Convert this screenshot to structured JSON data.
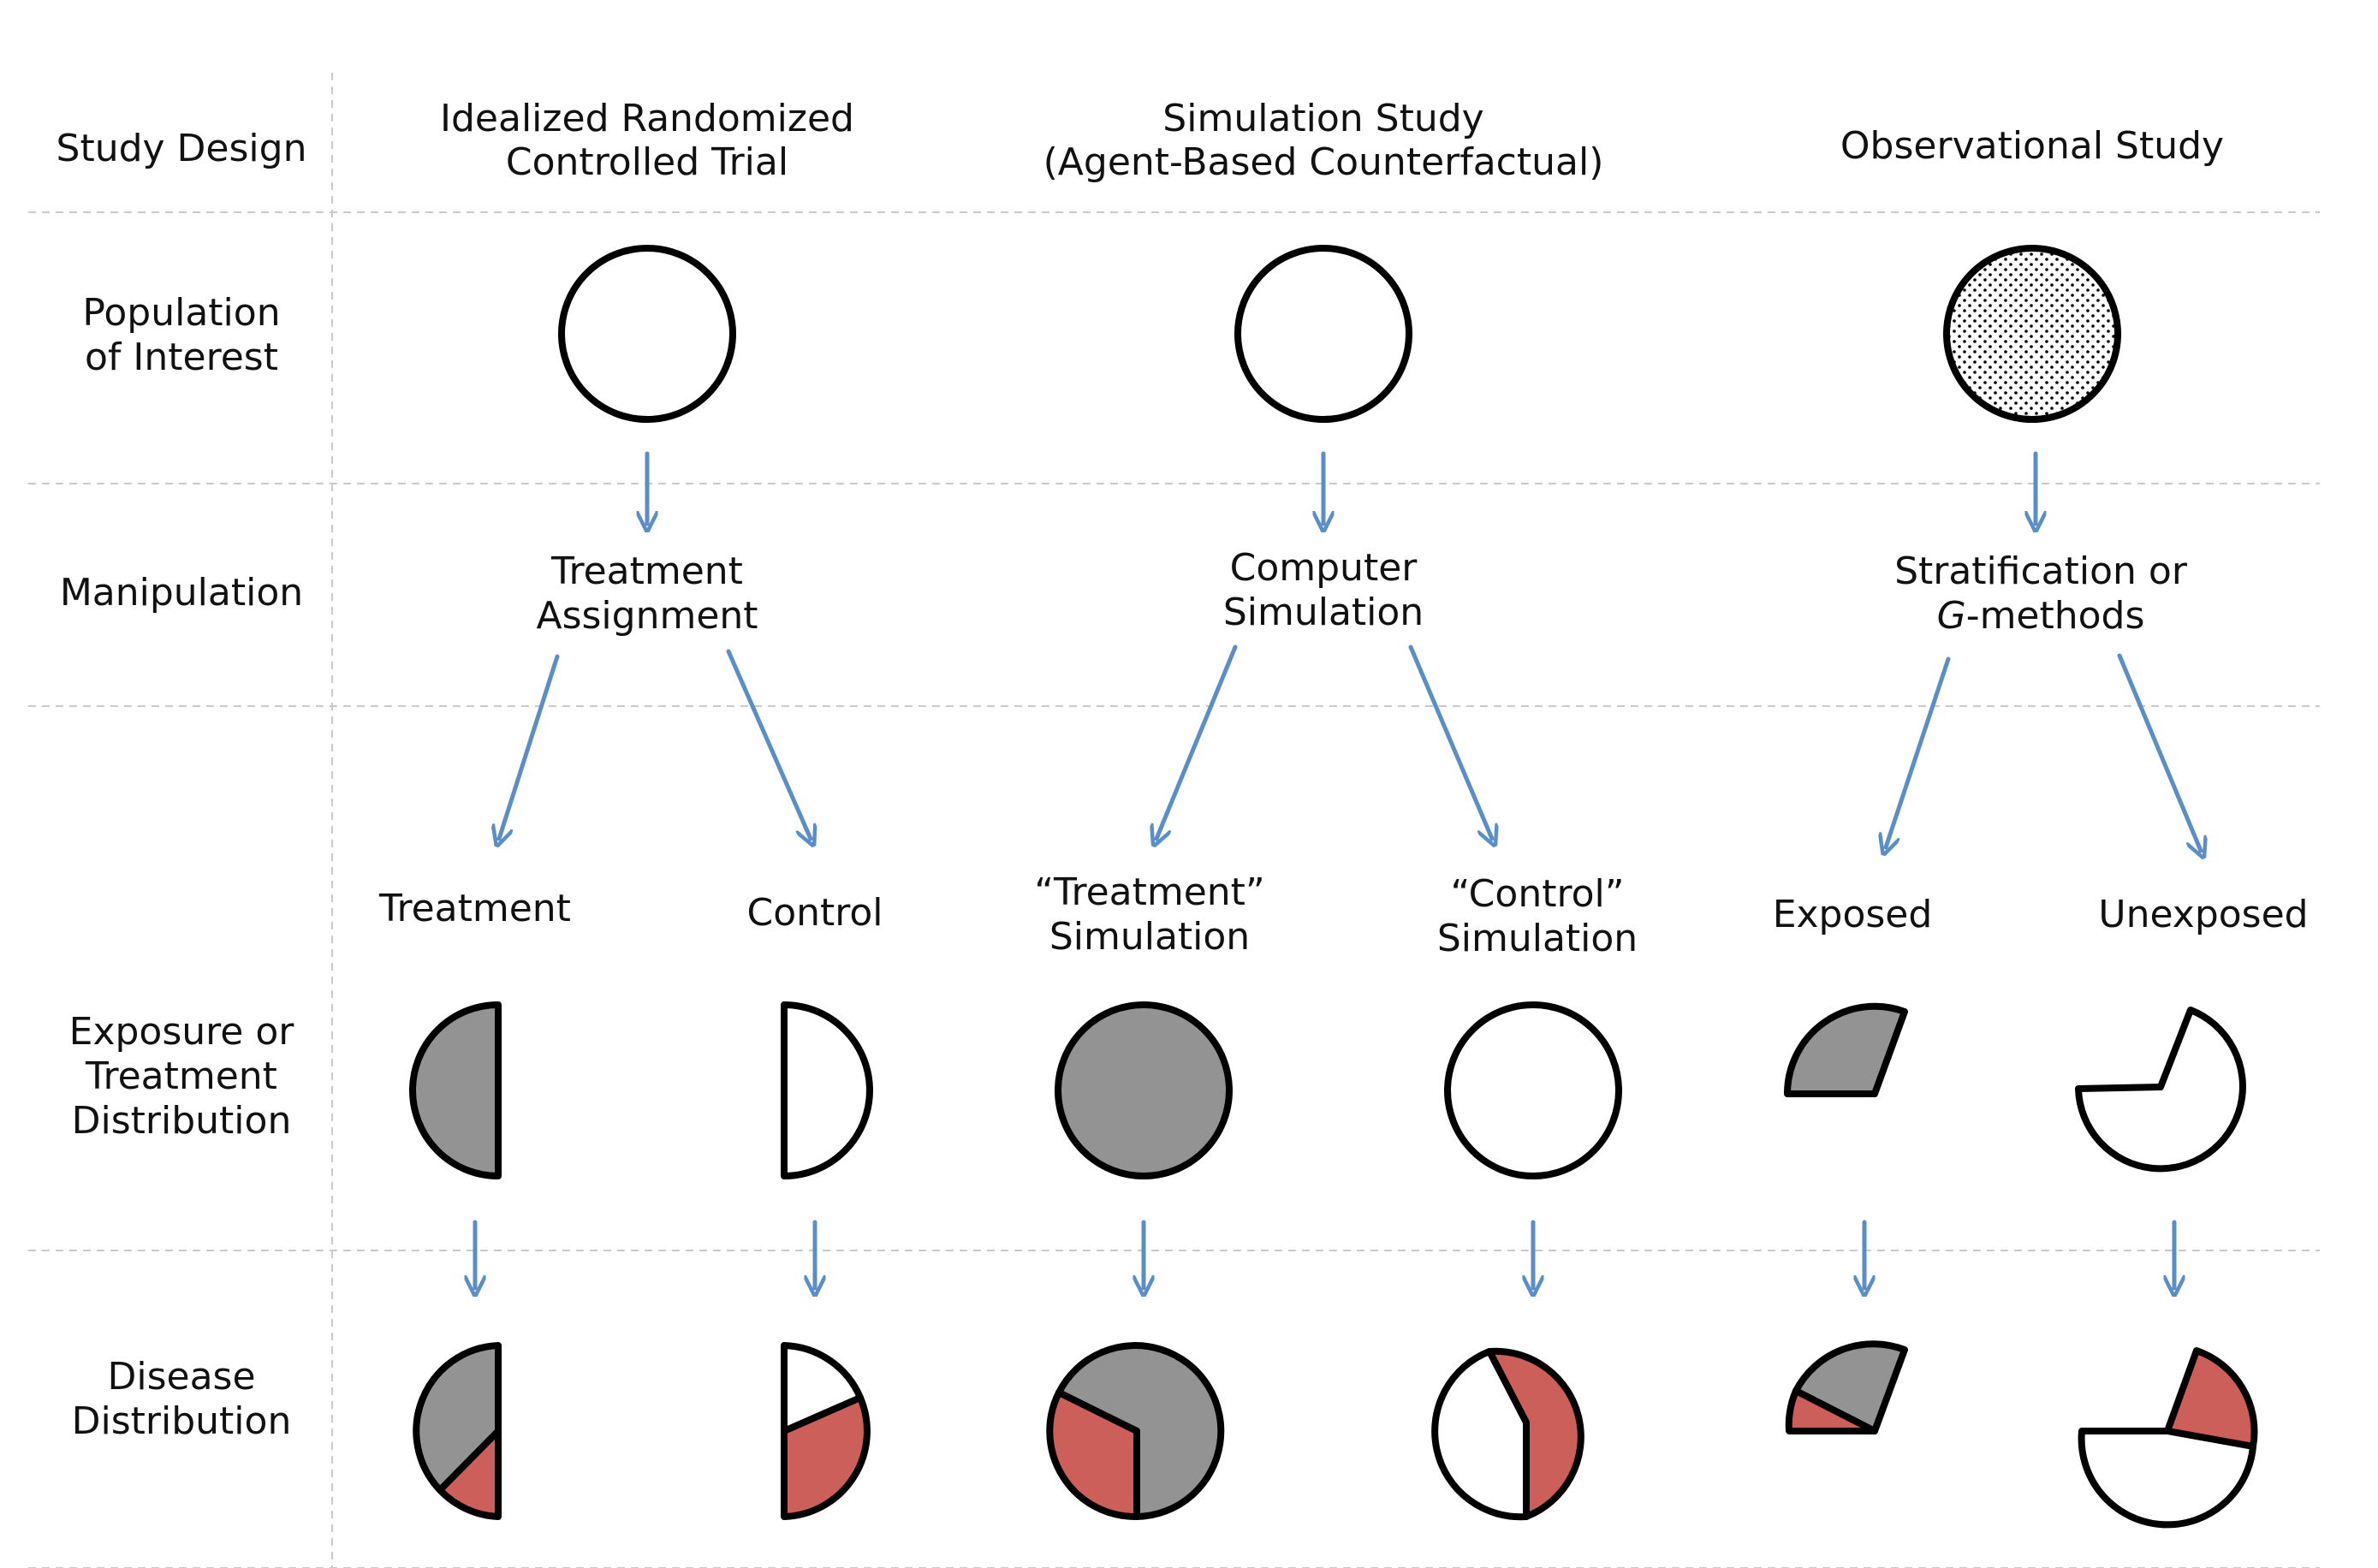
{
  "colors": {
    "exposed_fill": "#939393",
    "unexposed_fill": "#ffffff",
    "disease_fill": "#cd5f5a",
    "arrow": "#5b8ec6",
    "separator": "#c9c9c9",
    "observational_population_fill": "stippled"
  },
  "row_labels": {
    "study_design": "Study Design",
    "population_line1": "Population",
    "population_line2": "of Interest",
    "manipulation": "Manipulation",
    "exposure_line1": "Exposure or",
    "exposure_line2": "Treatment",
    "exposure_line3": "Distribution",
    "disease_line1": "Disease",
    "disease_line2": "Distribution"
  },
  "columns": {
    "rct": {
      "title_line1": "Idealized Randomized",
      "title_line2": "Controlled Trial",
      "manipulation_line1": "Treatment",
      "manipulation_line2": "Assignment",
      "branch_left": "Treatment",
      "branch_right": "Control"
    },
    "simulation": {
      "title_line1": "Simulation Study",
      "title_line2": "(Agent-Based Counterfactual)",
      "manipulation_line1": "Computer",
      "manipulation_line2": "Simulation",
      "branch_left_line1": "“Treatment”",
      "branch_left_line2": "Simulation",
      "branch_right_line1": "“Control”",
      "branch_right_line2": "Simulation"
    },
    "observational": {
      "title": "Observational Study",
      "manipulation_line1": "Stratification or",
      "manipulation_line2_italic": "G",
      "manipulation_line2_rest": "-methods",
      "branch_left": "Exposed",
      "branch_right": "Unexposed"
    }
  }
}
